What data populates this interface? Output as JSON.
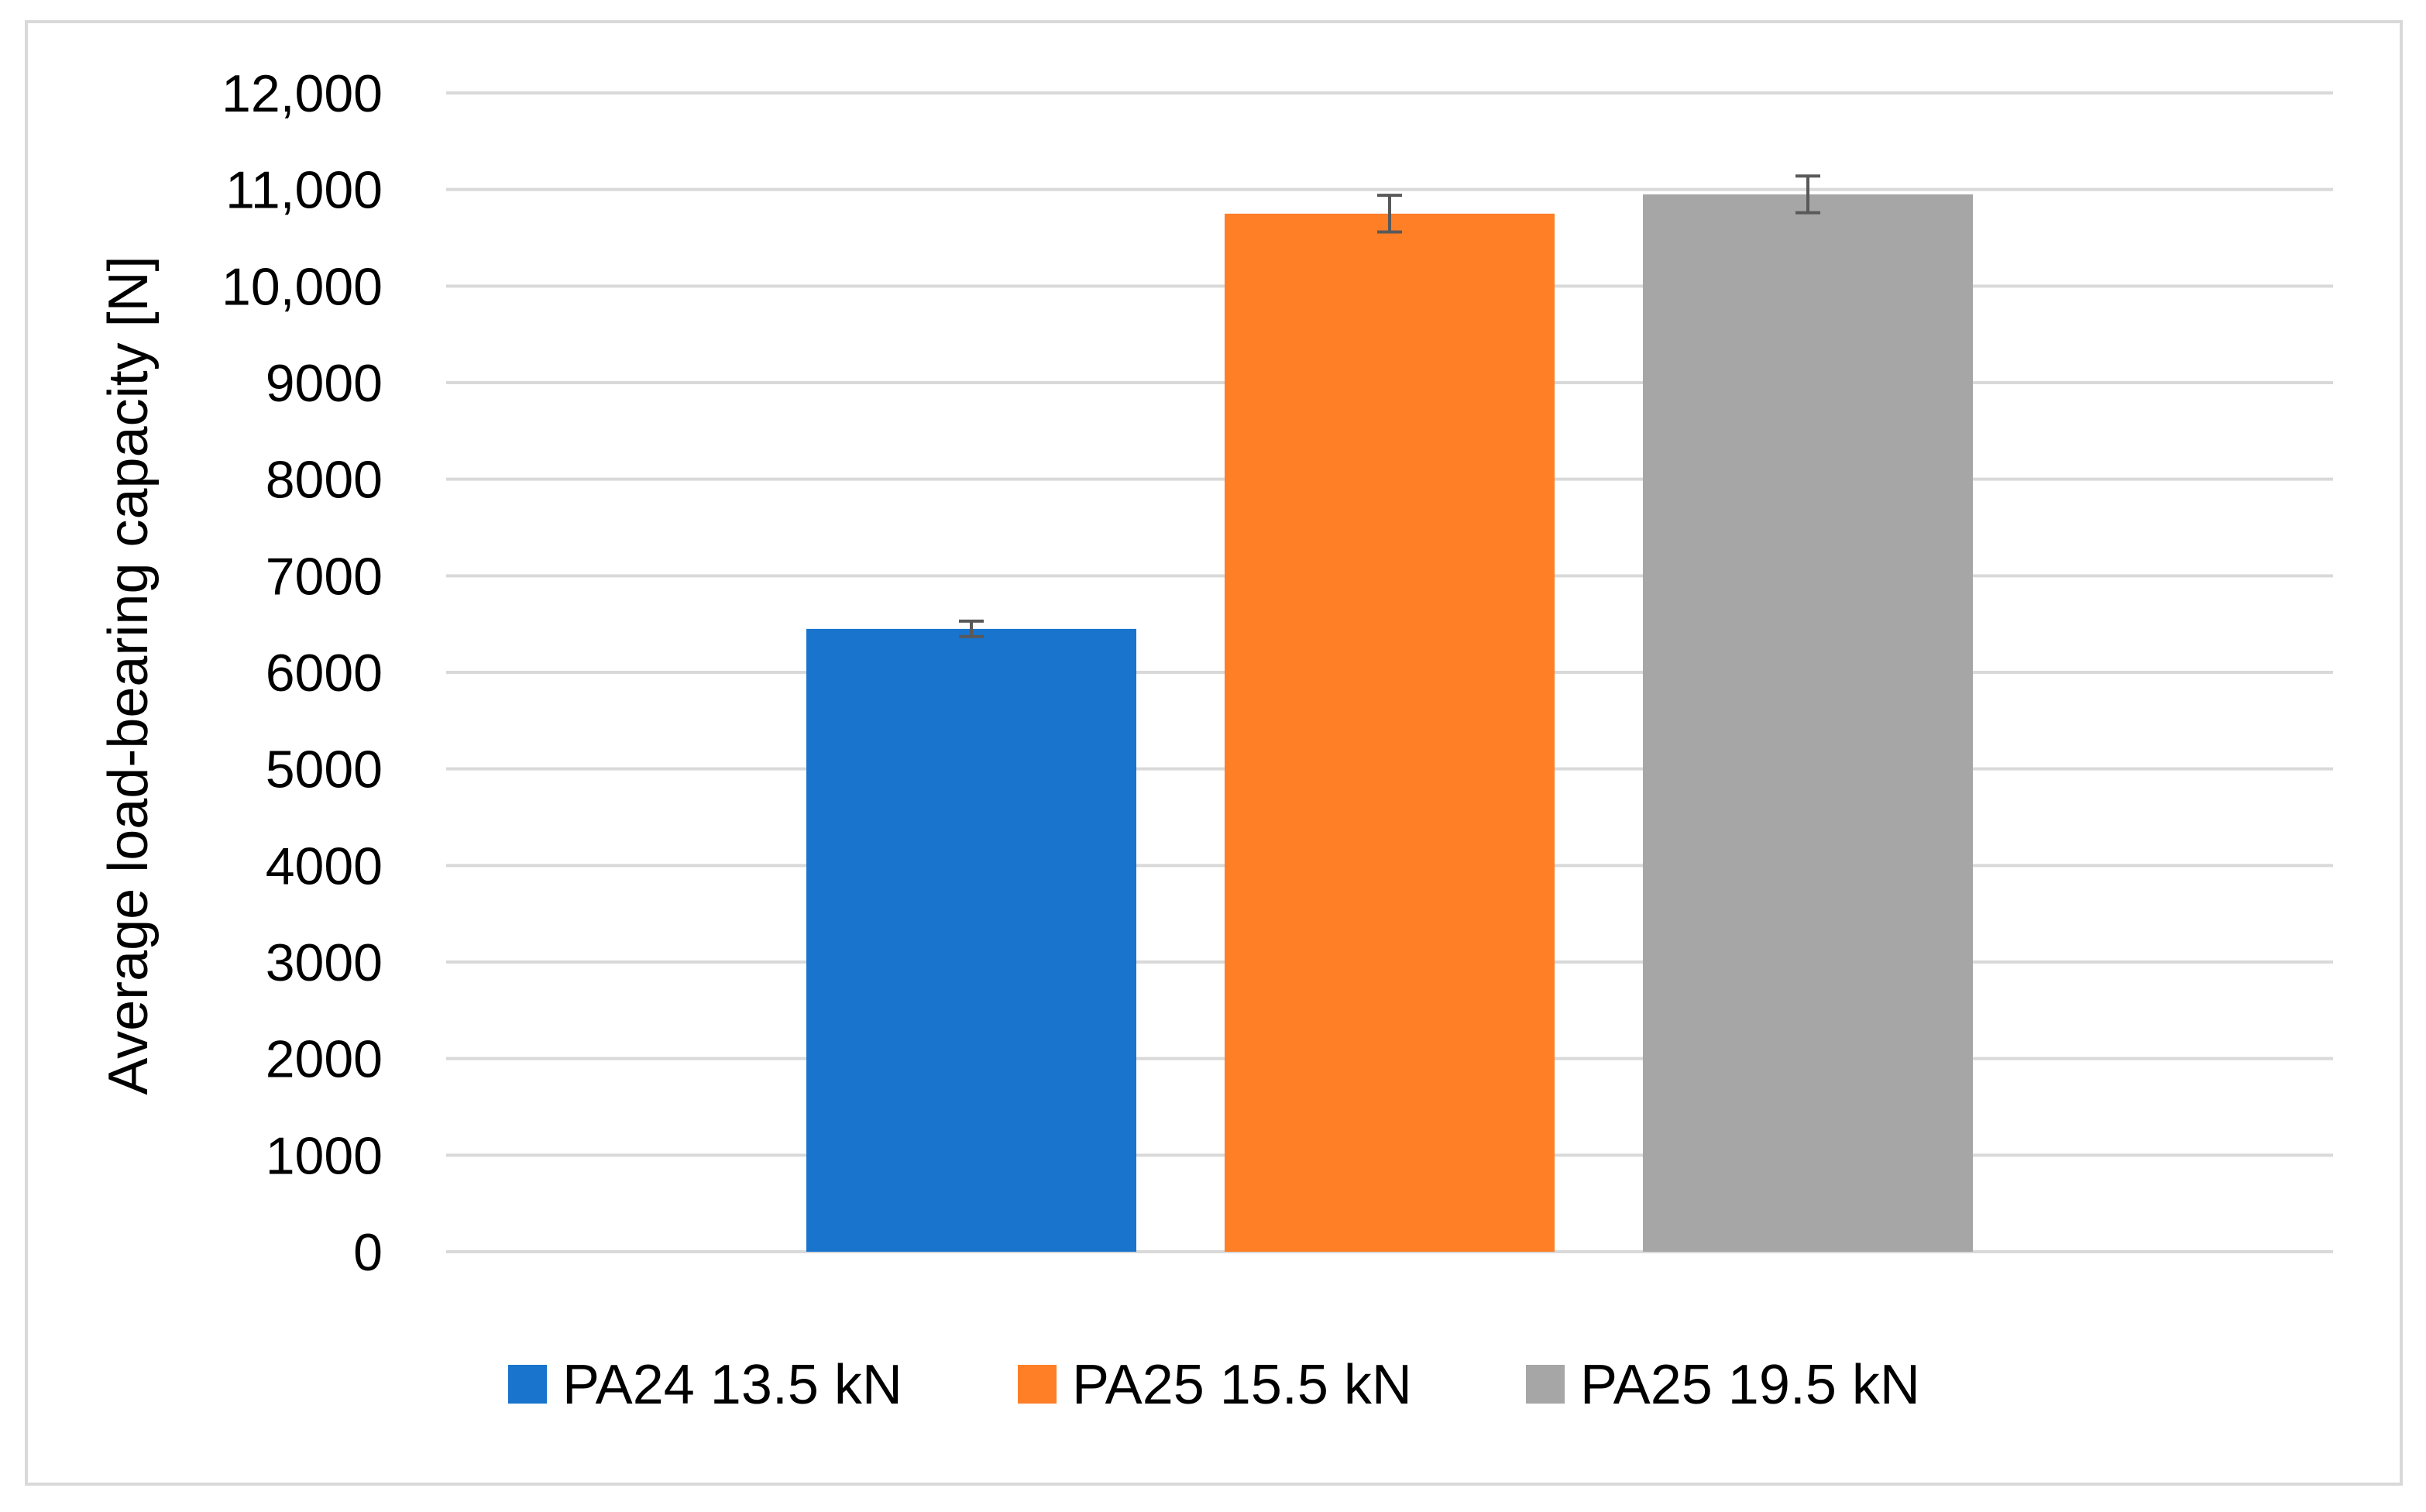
{
  "chart_data": {
    "type": "bar",
    "title": "",
    "xlabel": "",
    "ylabel": "Average load-bearing capacity [N]",
    "ylim": [
      0,
      12000
    ],
    "yticks": [
      0,
      1000,
      2000,
      3000,
      4000,
      5000,
      6000,
      7000,
      8000,
      9000,
      10000,
      11000,
      12000
    ],
    "ytick_labels": [
      "0",
      "1000",
      "2000",
      "3000",
      "4000",
      "5000",
      "6000",
      "7000",
      "8000",
      "9000",
      "10,000",
      "11,000",
      "12,000"
    ],
    "grid": true,
    "legend_position": "bottom",
    "series": [
      {
        "name": "PA24 13.5 kN",
        "value": 6450,
        "error": 80,
        "color": "#1874cd"
      },
      {
        "name": "PA25 15.5 kN",
        "value": 10750,
        "error": 190,
        "color": "#ff7f27"
      },
      {
        "name": "PA25 19.5 kN",
        "value": 10950,
        "error": 190,
        "color": "#a6a6a6"
      }
    ]
  }
}
